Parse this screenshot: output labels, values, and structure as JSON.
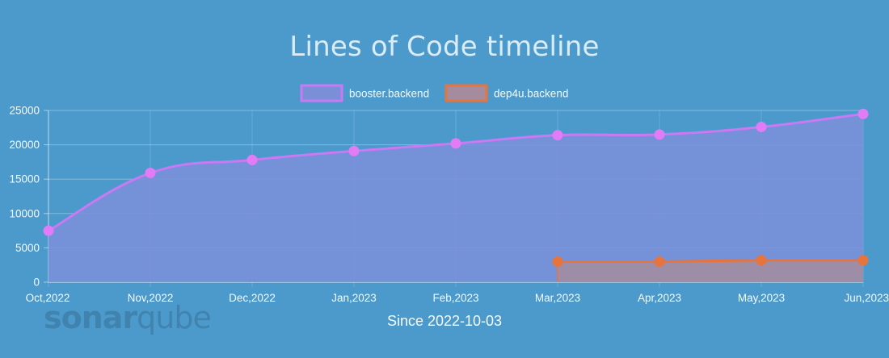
{
  "chart_data": {
    "type": "line",
    "title": "Lines of Code timeline",
    "categories": [
      "Oct,2022",
      "Nov,2022",
      "Dec,2022",
      "Jan,2023",
      "Feb,2023",
      "Mar,2023",
      "Apr,2023",
      "May,2023",
      "Jun,2023"
    ],
    "ylim": [
      0,
      25000
    ],
    "yticks": [
      0,
      5000,
      10000,
      15000,
      20000,
      25000
    ],
    "grid": true,
    "legend_position": "top",
    "series": [
      {
        "name": "booster.backend",
        "values": [
          7500,
          15900,
          17800,
          19100,
          20200,
          21400,
          21500,
          22600,
          24500
        ],
        "line_color": "#c879f3",
        "fill_color": "#7b8fd9",
        "point_color": "#e27cf6"
      },
      {
        "name": "dep4u.backend",
        "values": [
          null,
          null,
          null,
          null,
          null,
          3000,
          3000,
          3200,
          3200
        ],
        "line_color": "#e8743d",
        "fill_color": "#a48c9e",
        "point_color": "#e8743d"
      }
    ],
    "subtitle": "Since 2022-10-03"
  },
  "watermark": {
    "part1": "sonar",
    "part2": "qube"
  }
}
